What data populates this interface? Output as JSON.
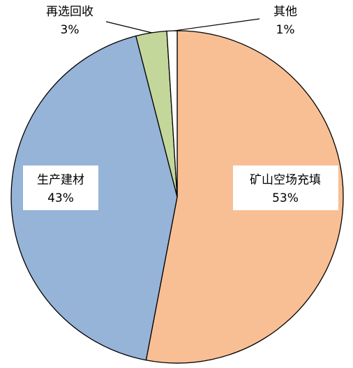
{
  "chart_data": {
    "type": "pie",
    "start_angle_deg": 0,
    "direction": "clockwise",
    "slices": [
      {
        "name": "矿山空场充填",
        "value": 53,
        "label": "53%",
        "color": "#F9BF94"
      },
      {
        "name": "生产建材",
        "value": 43,
        "label": "43%",
        "color": "#96B3D8"
      },
      {
        "name": "再选回收",
        "value": 3,
        "label": "3%",
        "color": "#C4D79B"
      },
      {
        "name": "其他",
        "value": 1,
        "label": "1%",
        "color": "#FFFFFF"
      }
    ]
  }
}
